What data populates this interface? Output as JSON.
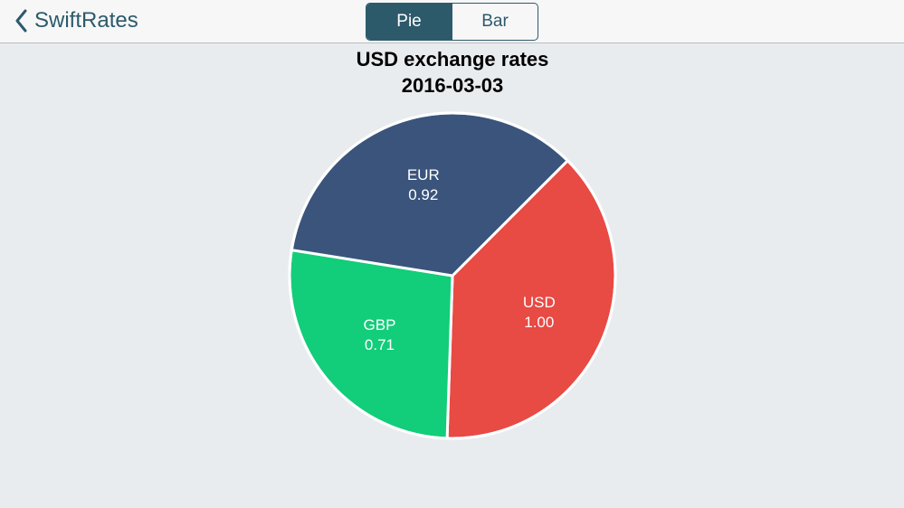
{
  "header": {
    "back_label": "SwiftRates",
    "segments": [
      "Pie",
      "Bar"
    ],
    "selected_segment": "Pie"
  },
  "chart_data": {
    "type": "pie",
    "title": "USD exchange rates",
    "subtitle": "2016-03-03",
    "categories": [
      "USD",
      "GBP",
      "EUR"
    ],
    "values": [
      1,
      0.71,
      0.92
    ],
    "value_labels": [
      "1.00",
      "0.71",
      "0.92"
    ],
    "colors": [
      "#e84a44",
      "#12cd7a",
      "#3a547c"
    ]
  }
}
